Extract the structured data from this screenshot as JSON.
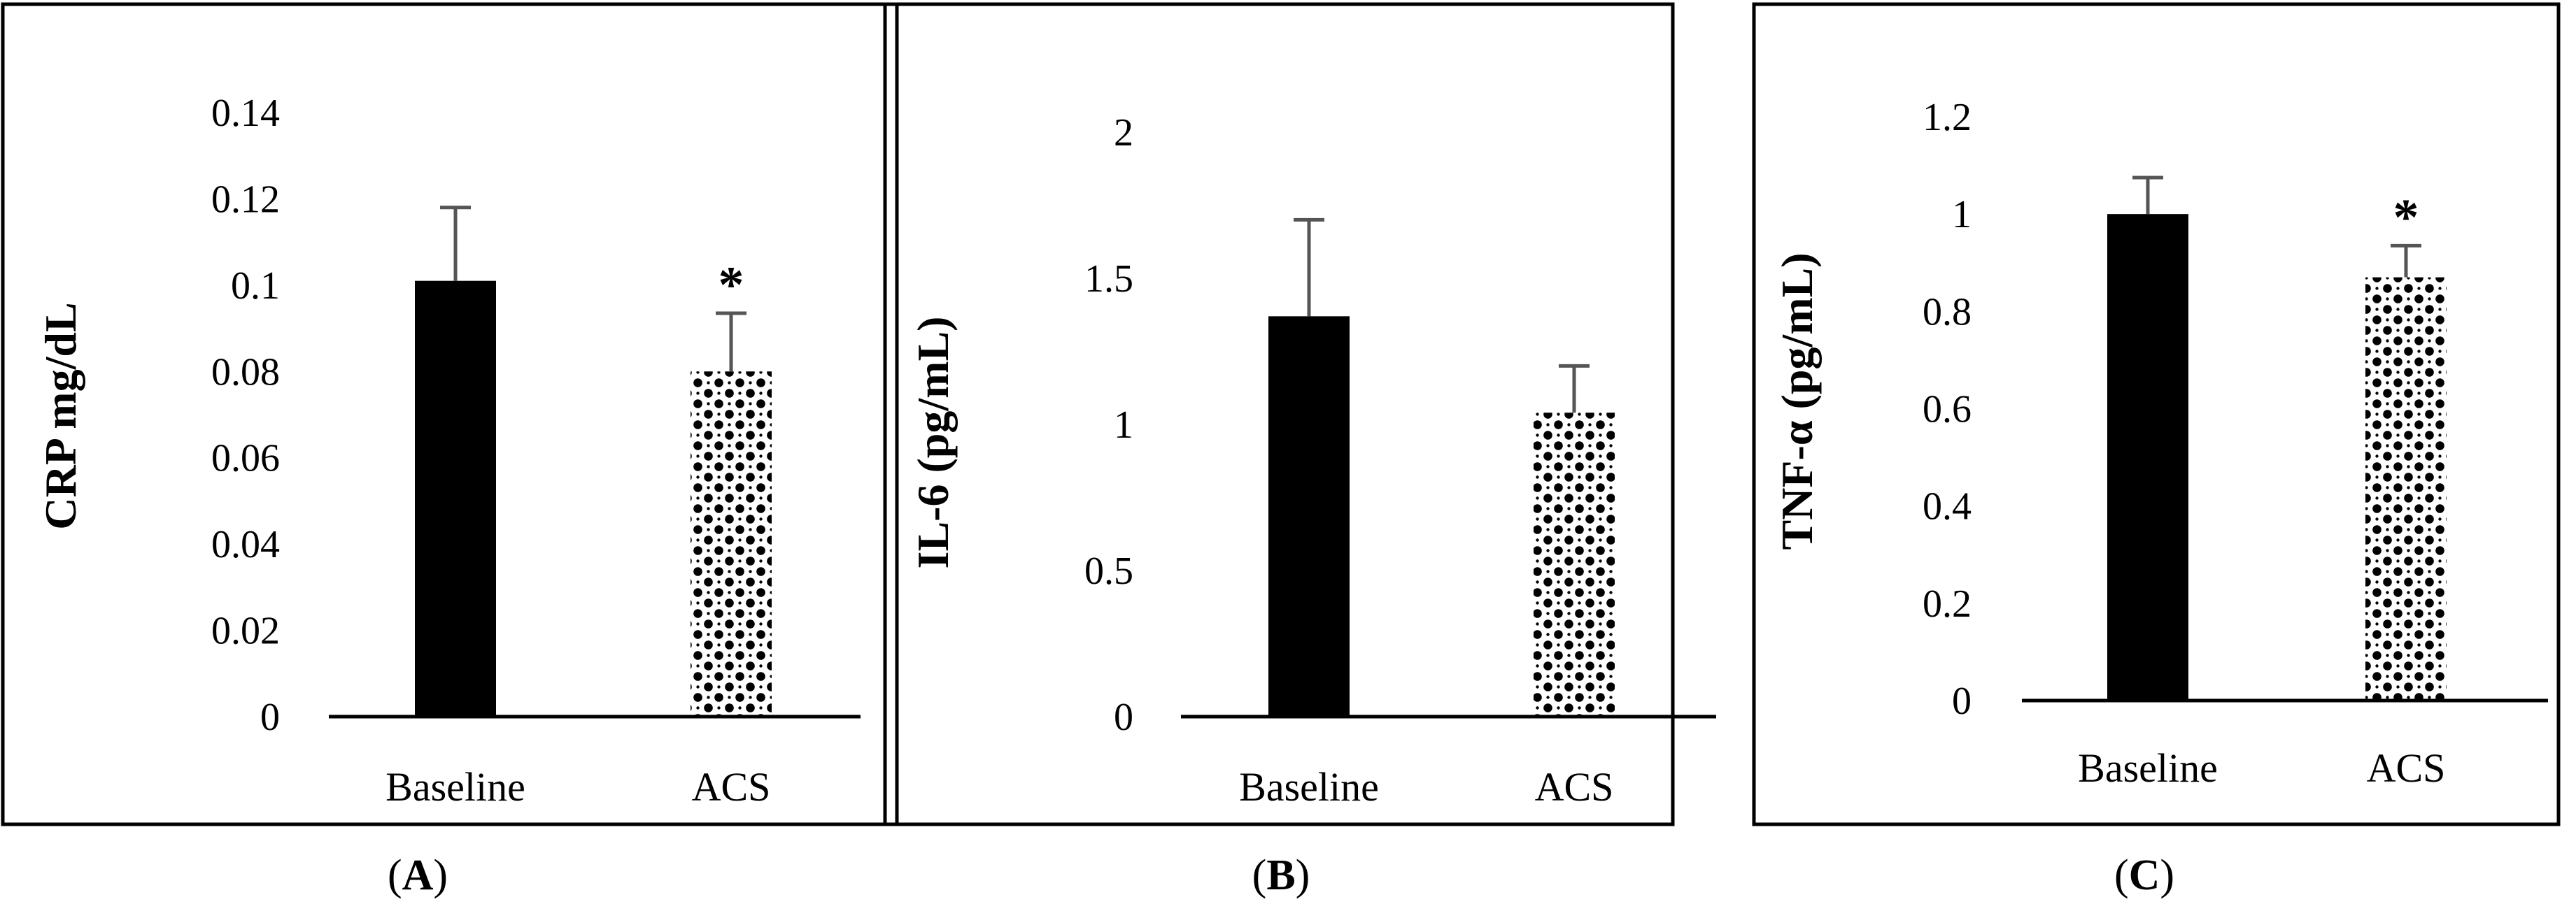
{
  "colors": {
    "frame": "#000000",
    "bar_solid": "#000000",
    "pattern_fill": "#ffffff",
    "pattern_dot": "#000000",
    "error_bar": "#555555",
    "text": "#000000"
  },
  "panel_labels": [
    "A",
    "B",
    "C"
  ],
  "chart_data": [
    {
      "type": "bar",
      "panel_label": "A",
      "categories": [
        "Baseline",
        "ACS"
      ],
      "values": [
        0.101,
        0.08
      ],
      "errors": [
        0.017,
        0.0135
      ],
      "significance": [
        "",
        "*"
      ],
      "ylabel": "CRP mg/dL",
      "ylabel_bold": true,
      "ylim": [
        0,
        0.14
      ],
      "yticks": [
        "0",
        "0.02",
        "0.04",
        "0.06",
        "0.08",
        "0.1",
        "0.12",
        "0.14"
      ],
      "bar_styles": [
        "solid",
        "dotted-pattern"
      ],
      "grid": false
    },
    {
      "type": "bar",
      "panel_label": "B",
      "categories": [
        "Baseline",
        "ACS"
      ],
      "values": [
        1.37,
        1.04
      ],
      "errors": [
        0.33,
        0.16
      ],
      "significance": [
        "",
        ""
      ],
      "ylabel": "IL-6 (pg/mL)",
      "ylabel_bold": true,
      "ylim": [
        0,
        2
      ],
      "yticks": [
        "0",
        "0.5",
        "1",
        "1.5",
        "2"
      ],
      "bar_styles": [
        "solid",
        "dotted-pattern"
      ],
      "grid": false
    },
    {
      "type": "bar",
      "panel_label": "C",
      "categories": [
        "Baseline",
        "ACS"
      ],
      "values": [
        1.0,
        0.87
      ],
      "errors": [
        0.075,
        0.065
      ],
      "significance": [
        "",
        "*"
      ],
      "ylabel": "TNF-α (pg/mL)",
      "ylabel_bold": true,
      "ylim": [
        0,
        1.2
      ],
      "yticks": [
        "0",
        "0.2",
        "0.4",
        "0.6",
        "0.8",
        "1",
        "1.2"
      ],
      "bar_styles": [
        "solid",
        "dotted-pattern"
      ],
      "grid": false
    }
  ]
}
